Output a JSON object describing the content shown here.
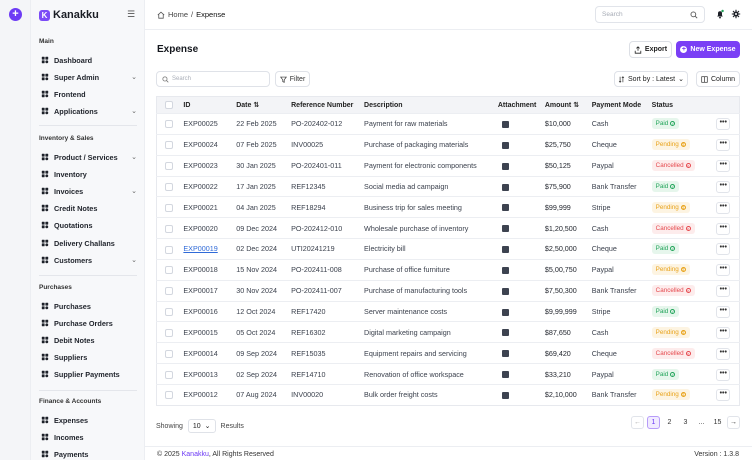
{
  "app": {
    "name": "Kanakku"
  },
  "colors": {
    "accent": "#7a3ff5",
    "paid": "#22a45a",
    "pending": "#e8a21a",
    "cancelled": "#e5484d"
  },
  "sidebar": {
    "sections": [
      {
        "title": "Main"
      },
      {
        "title": "Inventory & Sales"
      },
      {
        "title": "Purchases"
      },
      {
        "title": "Finance & Accounts"
      }
    ],
    "items": [
      {
        "label": "Dashboard",
        "icon": "dashboard-icon"
      },
      {
        "label": "Super Admin",
        "icon": "admin-icon",
        "chevron": true
      },
      {
        "label": "Frontend",
        "icon": "frontend-icon"
      },
      {
        "label": "Applications",
        "icon": "apps-icon",
        "chevron": true
      },
      {
        "label": "Product / Services",
        "icon": "product-icon",
        "chevron": true
      },
      {
        "label": "Inventory",
        "icon": "inventory-icon"
      },
      {
        "label": "Invoices",
        "icon": "invoice-icon",
        "chevron": true
      },
      {
        "label": "Credit Notes",
        "icon": "credit-note-icon"
      },
      {
        "label": "Quotations",
        "icon": "quotation-icon"
      },
      {
        "label": "Delivery Challans",
        "icon": "delivery-icon"
      },
      {
        "label": "Customers",
        "icon": "customers-icon",
        "chevron": true
      },
      {
        "label": "Purchases",
        "icon": "purchases-icon"
      },
      {
        "label": "Purchase Orders",
        "icon": "purchase-order-icon"
      },
      {
        "label": "Debit Notes",
        "icon": "debit-note-icon"
      },
      {
        "label": "Suppliers",
        "icon": "suppliers-icon"
      },
      {
        "label": "Supplier Payments",
        "icon": "supplier-payments-icon"
      },
      {
        "label": "Expenses",
        "icon": "expenses-icon"
      },
      {
        "label": "Incomes",
        "icon": "incomes-icon"
      },
      {
        "label": "Payments",
        "icon": "payments-icon"
      }
    ]
  },
  "header": {
    "breadcrumb": {
      "home": "Home",
      "separator": "/",
      "current": "Expense"
    },
    "search_placeholder": "Search"
  },
  "main": {
    "title": "Expense",
    "export_label": "Export",
    "new_label": "New Expense",
    "table_search_placeholder": "Search",
    "filter_label": "Filter",
    "sort_label": "Sort by : Latest",
    "column_label": "Column"
  },
  "table": {
    "headers": [
      "ID",
      "Date",
      "Reference Number",
      "Description",
      "Attachment",
      "Amount",
      "Payment Mode",
      "Status"
    ],
    "rows": [
      {
        "id": "EXP00025",
        "date": "22 Feb 2025",
        "ref": "PO-202402-012",
        "desc": "Payment for raw materials",
        "amount": "$10,000",
        "mode": "Cash",
        "status": "Paid"
      },
      {
        "id": "EXP00024",
        "date": "07 Feb 2025",
        "ref": "INV00025",
        "desc": "Purchase of packaging materials",
        "amount": "$25,750",
        "mode": "Cheque",
        "status": "Pending"
      },
      {
        "id": "EXP00023",
        "date": "30 Jan 2025",
        "ref": "PO-202401-011",
        "desc": "Payment for electronic components",
        "amount": "$50,125",
        "mode": "Paypal",
        "status": "Cancelled"
      },
      {
        "id": "EXP00022",
        "date": "17 Jan 2025",
        "ref": "REF12345",
        "desc": "Social media ad campaign",
        "amount": "$75,900",
        "mode": "Bank Transfer",
        "status": "Paid"
      },
      {
        "id": "EXP00021",
        "date": "04 Jan 2025",
        "ref": "REF18294",
        "desc": "Business trip for sales meeting",
        "amount": "$99,999",
        "mode": "Stripe",
        "status": "Pending"
      },
      {
        "id": "EXP00020",
        "date": "09 Dec 2024",
        "ref": "PO-202412-010",
        "desc": "Wholesale purchase of inventory",
        "amount": "$1,20,500",
        "mode": "Cash",
        "status": "Cancelled"
      },
      {
        "id": "EXP00019",
        "date": "02 Dec 2024",
        "ref": "UTI20241219",
        "desc": "Electricity bill",
        "amount": "$2,50,000",
        "mode": "Cheque",
        "status": "Paid",
        "link": true
      },
      {
        "id": "EXP00018",
        "date": "15 Nov 2024",
        "ref": "PO-202411-008",
        "desc": "Purchase of office furniture",
        "amount": "$5,00,750",
        "mode": "Paypal",
        "status": "Pending"
      },
      {
        "id": "EXP00017",
        "date": "30 Nov 2024",
        "ref": "PO-202411-007",
        "desc": "Purchase of manufacturing tools",
        "amount": "$7,50,300",
        "mode": "Bank Transfer",
        "status": "Cancelled"
      },
      {
        "id": "EXP00016",
        "date": "12 Oct 2024",
        "ref": "REF17420",
        "desc": "Server maintenance costs",
        "amount": "$9,99,999",
        "mode": "Stripe",
        "status": "Paid"
      },
      {
        "id": "EXP00015",
        "date": "05 Oct 2024",
        "ref": "REF16302",
        "desc": "Digital marketing campaign",
        "amount": "$87,650",
        "mode": "Cash",
        "status": "Pending"
      },
      {
        "id": "EXP00014",
        "date": "09 Sep 2024",
        "ref": "REF15035",
        "desc": "Equipment repairs and servicing",
        "amount": "$69,420",
        "mode": "Cheque",
        "status": "Cancelled"
      },
      {
        "id": "EXP00013",
        "date": "02 Sep 2024",
        "ref": "REF14710",
        "desc": "Renovation of office workspace",
        "amount": "$33,210",
        "mode": "Paypal",
        "status": "Paid"
      },
      {
        "id": "EXP00012",
        "date": "07 Aug 2024",
        "ref": "INV00020",
        "desc": "Bulk order freight costs",
        "amount": "$2,10,000",
        "mode": "Bank Transfer",
        "status": "Pending"
      }
    ]
  },
  "pagination": {
    "showing_label": "Showing",
    "per_page": "10",
    "results_label": "Results",
    "pages": [
      "1",
      "2",
      "3",
      "...",
      "15"
    ],
    "current": "1"
  },
  "footer": {
    "copyright_prefix": "© 2025 ",
    "brand": "Kanakku",
    "copyright_suffix": ", All Rights Reserved",
    "version": "Version : 1.3.8"
  }
}
